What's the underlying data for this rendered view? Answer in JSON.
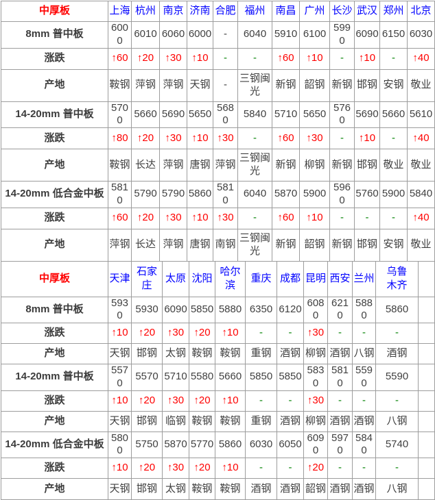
{
  "colors": {
    "section_title_red": "#ff0000",
    "city_header_blue": "#0000ff",
    "price_text_gray": "#404040",
    "change_up_red": "#ff0000",
    "no_change_green": "#008000",
    "border_gray": "#9c9c9c"
  },
  "tables": [
    {
      "title": "中厚板",
      "cities": [
        "上海",
        "杭州",
        "南京",
        "济南",
        "合肥",
        "福州",
        "南昌",
        "广州",
        "长沙",
        "武汉",
        "郑州",
        "北京"
      ],
      "rows": [
        {
          "label": "8mm 普中板",
          "type": "price",
          "values": [
            "6000",
            "6010",
            "6060",
            "6000",
            "-",
            "6040",
            "5910",
            "6100",
            "5990",
            "6090",
            "6150",
            "6030"
          ]
        },
        {
          "label": "涨跌",
          "type": "change",
          "values": [
            "↑60",
            "↑20",
            "↑30",
            "↑10",
            "-",
            "-",
            "↑60",
            "↑10",
            "-",
            "↑10",
            "-",
            "↑40"
          ]
        },
        {
          "label": "产地",
          "type": "origin",
          "values": [
            "鞍钢",
            "萍钢",
            "萍钢",
            "天钢",
            "-",
            "三钢闽光",
            "新钢",
            "韶钢",
            "新钢",
            "邯钢",
            "安钢",
            "敬业"
          ]
        },
        {
          "label": "14-20mm 普中板",
          "type": "price",
          "values": [
            "5700",
            "5660",
            "5690",
            "5650",
            "5680",
            "5840",
            "5710",
            "5650",
            "5760",
            "5690",
            "5660",
            "5610"
          ]
        },
        {
          "label": "涨跌",
          "type": "change",
          "values": [
            "↑80",
            "↑20",
            "↑30",
            "↑10",
            "↑30",
            "-",
            "↑60",
            "↑30",
            "-",
            "↑10",
            "-",
            "↑40"
          ]
        },
        {
          "label": "产地",
          "type": "origin",
          "values": [
            "鞍钢",
            "长达",
            "萍钢",
            "唐钢",
            "萍钢",
            "三钢闽光",
            "新钢",
            "柳钢",
            "新钢",
            "邯钢",
            "敬业",
            "敬业"
          ]
        },
        {
          "label": "14-20mm 低合金中板",
          "type": "price",
          "values": [
            "5810",
            "5790",
            "5790",
            "5860",
            "5810",
            "6040",
            "5870",
            "5900",
            "5960",
            "5760",
            "5900",
            "5840"
          ]
        },
        {
          "label": "涨跌",
          "type": "change",
          "values": [
            "↑60",
            "↑20",
            "↑30",
            "↑10",
            "↑30",
            "-",
            "↑60",
            "↑10",
            "-",
            "-",
            "-",
            "↑40"
          ]
        },
        {
          "label": "产地",
          "type": "origin",
          "values": [
            "萍钢",
            "长达",
            "萍钢",
            "唐钢",
            "南钢",
            "三钢闽光",
            "新钢",
            "韶钢",
            "新钢",
            "邯钢",
            "安钢",
            "敬业"
          ]
        }
      ]
    },
    {
      "title": "中厚板",
      "cities": [
        "天津",
        "石家庄",
        "太原",
        "沈阳",
        "哈尔滨",
        "重庆",
        "成都",
        "昆明",
        "西安",
        "兰州",
        "乌鲁木齐",
        ""
      ],
      "rows": [
        {
          "label": "8mm 普中板",
          "type": "price",
          "values": [
            "5930",
            "5930",
            "6090",
            "5850",
            "5880",
            "6350",
            "6120",
            "6080",
            "6210",
            "5880",
            "5860",
            ""
          ]
        },
        {
          "label": "涨跌",
          "type": "change",
          "values": [
            "↑10",
            "↑20",
            "↑30",
            "↑20",
            "↑10",
            "-",
            "-",
            "↑30",
            "-",
            "-",
            "-",
            ""
          ]
        },
        {
          "label": "产地",
          "type": "origin",
          "values": [
            "天钢",
            "邯钢",
            "太钢",
            "鞍钢",
            "鞍钢",
            "重钢",
            "酒钢",
            "柳钢",
            "酒钢",
            "八钢",
            "酒钢",
            ""
          ]
        },
        {
          "label": "14-20mm 普中板",
          "type": "price",
          "values": [
            "5570",
            "5570",
            "5710",
            "5580",
            "5660",
            "5850",
            "5850",
            "5830",
            "5810",
            "5590",
            "5590",
            ""
          ]
        },
        {
          "label": "涨跌",
          "type": "change",
          "values": [
            "↑10",
            "↑20",
            "↑30",
            "↑20",
            "↑10",
            "-",
            "-",
            "↑30",
            "-",
            "-",
            "-",
            ""
          ]
        },
        {
          "label": "产地",
          "type": "origin",
          "values": [
            "天钢",
            "邯钢",
            "临钢",
            "鞍钢",
            "鞍钢",
            "重钢",
            "酒钢",
            "柳钢",
            "酒钢",
            "酒钢",
            "八钢",
            ""
          ]
        },
        {
          "label": "14-20mm 低合金中板",
          "type": "price",
          "values": [
            "5800",
            "5750",
            "5870",
            "5770",
            "5860",
            "6030",
            "6050",
            "6090",
            "5970",
            "5840",
            "5740",
            ""
          ]
        },
        {
          "label": "涨跌",
          "type": "change",
          "values": [
            "↑10",
            "↑20",
            "↑30",
            "↑20",
            "↑10",
            "-",
            "-",
            "↑20",
            "-",
            "-",
            "-",
            ""
          ]
        },
        {
          "label": "产地",
          "type": "origin",
          "values": [
            "天钢",
            "邯钢",
            "太钢",
            "鞍钢",
            "鞍钢",
            "酒钢",
            "酒钢",
            "韶钢",
            "酒钢",
            "酒钢",
            "八钢",
            ""
          ]
        }
      ]
    }
  ]
}
